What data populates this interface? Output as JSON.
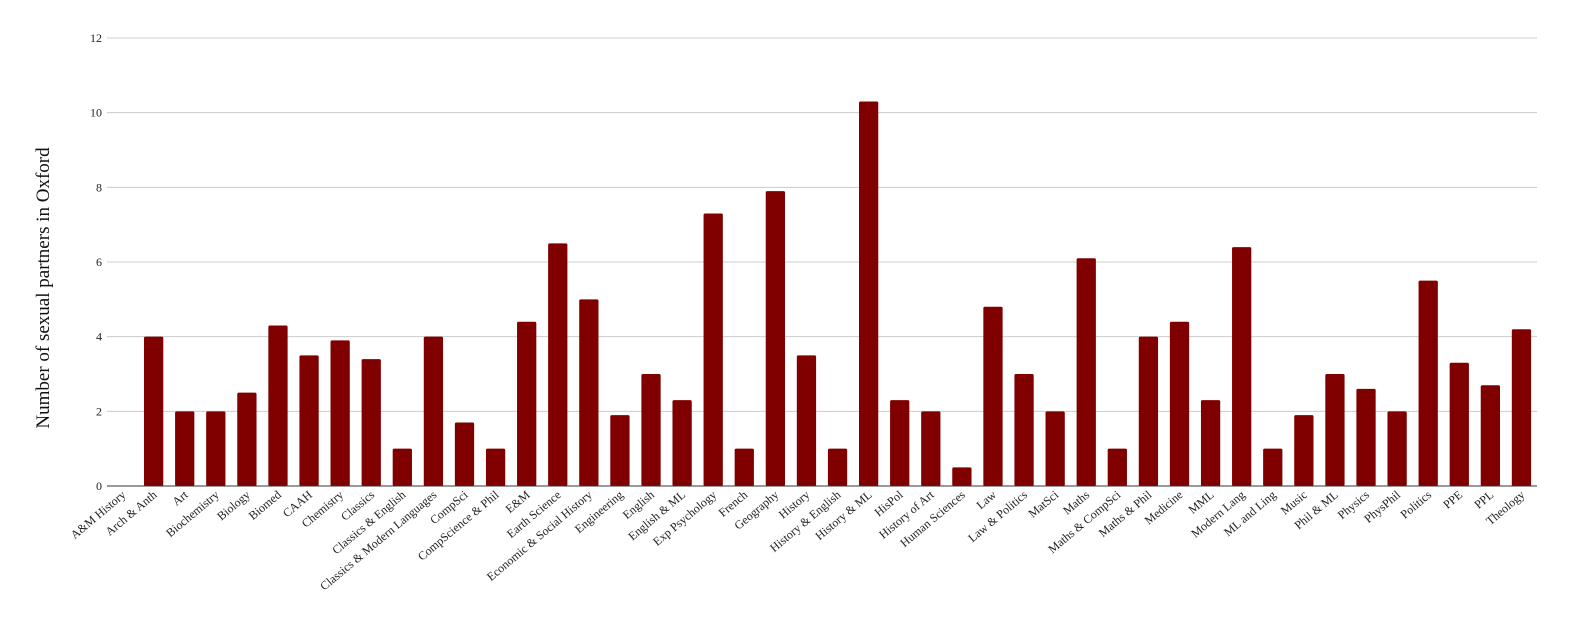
{
  "chart_data": {
    "type": "bar",
    "title": "",
    "xlabel": "",
    "ylabel": "Number of sexual partners in Oxford",
    "ylim": [
      0,
      12
    ],
    "yticks": [
      0,
      2,
      4,
      6,
      8,
      10,
      12
    ],
    "grid": true,
    "legend": "none",
    "bar_color": "#800000",
    "categories": [
      "A&M History",
      "Arch & Anth",
      "Art",
      "Biochemistry",
      "Biology",
      "Biomed",
      "CAAH",
      "Chemistry",
      "Classics",
      "Classics & English",
      "Classics & Modern Languages",
      "CompSci",
      "CompScience & Phil",
      "E&M",
      "Earth Science",
      "Economic & Social History",
      "Engineering",
      "English",
      "English & ML",
      "Exp Psychology",
      "French",
      "Geography",
      "History",
      "History & English",
      "History & ML",
      "HisPol",
      "History of Art",
      "Human Sciences",
      "Law",
      "Law & Politics",
      "MatSci",
      "Maths",
      "Maths & CompSci",
      "Maths & Phil",
      "Medicine",
      "MML",
      "Modern Lang",
      "ML and Ling",
      "Music",
      "Phil & ML",
      "Physics",
      "PhysPhil",
      "Politics",
      "PPE",
      "PPL",
      "Theology"
    ],
    "values": [
      0,
      4.0,
      2.0,
      2.0,
      2.5,
      4.3,
      3.5,
      3.9,
      3.4,
      1.0,
      4.0,
      1.7,
      1.0,
      4.4,
      6.5,
      5.0,
      1.9,
      3.0,
      2.3,
      7.3,
      1.0,
      7.9,
      3.5,
      1.0,
      10.3,
      2.3,
      2.0,
      0.5,
      4.8,
      3.0,
      2.0,
      6.1,
      1.0,
      4.0,
      4.4,
      2.3,
      6.4,
      1.0,
      1.9,
      3.0,
      2.6,
      2.0,
      5.5,
      3.3,
      2.7,
      4.2
    ]
  }
}
